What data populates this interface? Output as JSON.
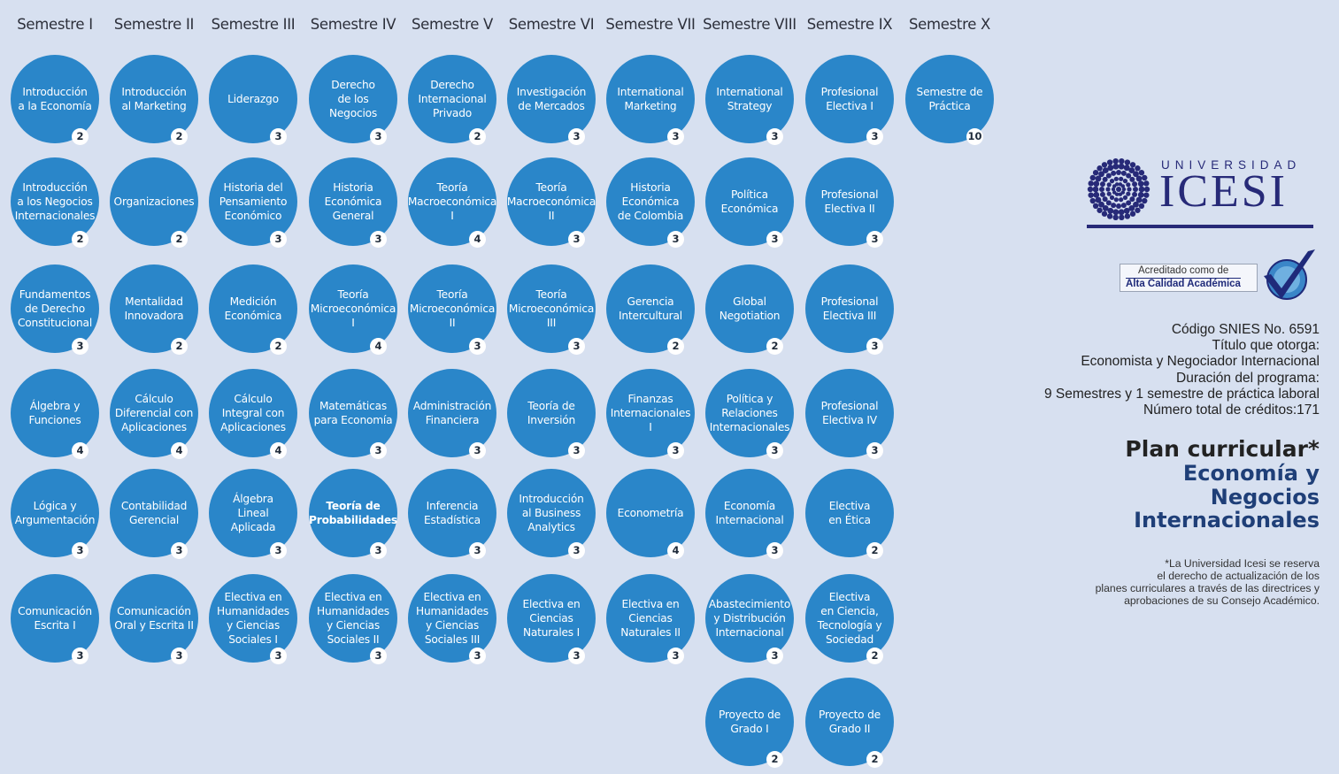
{
  "semesters": [
    {
      "header": "Semestre I",
      "courses": [
        {
          "name": "Introducción\na la Economía",
          "credits": "2"
        },
        {
          "name": "Introducción\na los Negocios\nInternacionales",
          "credits": "2"
        },
        {
          "name": "Fundamentos\nde Derecho\nConstitucional",
          "credits": "3"
        },
        {
          "name": "Álgebra y\nFunciones",
          "credits": "4"
        },
        {
          "name": "Lógica y\nArgumentación",
          "credits": "3"
        },
        {
          "name": "Comunicación\nEscrita I",
          "credits": "3"
        }
      ]
    },
    {
      "header": "Semestre II",
      "courses": [
        {
          "name": "Introducción\nal Marketing",
          "credits": "2"
        },
        {
          "name": "Organizaciones",
          "credits": "2"
        },
        {
          "name": "Mentalidad\nInnovadora",
          "credits": "2"
        },
        {
          "name": "Cálculo\nDiferencial con\nAplicaciones",
          "credits": "4"
        },
        {
          "name": "Contabilidad\nGerencial",
          "credits": "3"
        },
        {
          "name": "Comunicación\nOral y Escrita II",
          "credits": "3"
        }
      ]
    },
    {
      "header": "Semestre III",
      "courses": [
        {
          "name": "Liderazgo",
          "credits": "3"
        },
        {
          "name": "Historia del\nPensamiento\nEconómico",
          "credits": "3"
        },
        {
          "name": "Medición\nEconómica",
          "credits": "2"
        },
        {
          "name": "Cálculo\nIntegral con\nAplicaciones",
          "credits": "4"
        },
        {
          "name": "Álgebra\nLineal\nAplicada",
          "credits": "3"
        },
        {
          "name": "Electiva en\nHumanidades\ny Ciencias\nSociales I",
          "credits": "3"
        }
      ]
    },
    {
      "header": "Semestre IV",
      "courses": [
        {
          "name": "Derecho\nde los\nNegocios",
          "credits": "3"
        },
        {
          "name": "Historia\nEconómica\nGeneral",
          "credits": "3"
        },
        {
          "name": "Teoría\nMicroeconómica\nI",
          "credits": "4"
        },
        {
          "name": "Matemáticas\npara Economía",
          "credits": "3"
        },
        {
          "name": "Teoría de\nProbabilidades",
          "credits": "3",
          "bold": true
        },
        {
          "name": "Electiva en\nHumanidades\ny Ciencias\nSociales II",
          "credits": "3"
        }
      ]
    },
    {
      "header": "Semestre V",
      "courses": [
        {
          "name": "Derecho\nInternacional\nPrivado",
          "credits": "2"
        },
        {
          "name": "Teoría\nMacroeconómica\nI",
          "credits": "4"
        },
        {
          "name": "Teoría\nMicroeconómica\nII",
          "credits": "3"
        },
        {
          "name": "Administración\nFinanciera",
          "credits": "3"
        },
        {
          "name": "Inferencia\nEstadística",
          "credits": "3"
        },
        {
          "name": "Electiva en\nHumanidades\ny Ciencias\nSociales III",
          "credits": "3"
        }
      ]
    },
    {
      "header": "Semestre VI",
      "courses": [
        {
          "name": "Investigación\nde Mercados",
          "credits": "3"
        },
        {
          "name": "Teoría\nMacroeconómica\nII",
          "credits": "3"
        },
        {
          "name": "Teoría\nMicroeconómica\nIII",
          "credits": "3"
        },
        {
          "name": "Teoría de\nInversión",
          "credits": "3"
        },
        {
          "name": "Introducción\nal Business\nAnalytics",
          "credits": "3"
        },
        {
          "name": "Electiva en\nCiencias\nNaturales I",
          "credits": "3"
        }
      ]
    },
    {
      "header": "Semestre VII",
      "courses": [
        {
          "name": "International\nMarketing",
          "credits": "3"
        },
        {
          "name": "Historia\nEconómica\nde Colombia",
          "credits": "3"
        },
        {
          "name": "Gerencia\nIntercultural",
          "credits": "2"
        },
        {
          "name": "Finanzas\nInternacionales\nI",
          "credits": "3"
        },
        {
          "name": "Econometría",
          "credits": "4"
        },
        {
          "name": "Electiva en\nCiencias\nNaturales II",
          "credits": "3"
        }
      ]
    },
    {
      "header": "Semestre VIII",
      "courses": [
        {
          "name": "International\nStrategy",
          "credits": "3"
        },
        {
          "name": "Política\nEconómica",
          "credits": "3"
        },
        {
          "name": "Global\nNegotiation",
          "credits": "2"
        },
        {
          "name": "Política y\nRelaciones\nInternacionales",
          "credits": "3"
        },
        {
          "name": "Economía\nInternacional",
          "credits": "3"
        },
        {
          "name": "Abastecimiento\ny Distribución\nInternacional",
          "credits": "3"
        },
        {
          "name": "Proyecto de\nGrado I",
          "credits": "2"
        }
      ]
    },
    {
      "header": "Semestre IX",
      "courses": [
        {
          "name": "Profesional\nElectiva I",
          "credits": "3"
        },
        {
          "name": "Profesional\nElectiva II",
          "credits": "3"
        },
        {
          "name": "Profesional\nElectiva III",
          "credits": "3"
        },
        {
          "name": "Profesional\nElectiva IV",
          "credits": "3"
        },
        {
          "name": "Electiva\nen Ética",
          "credits": "2"
        },
        {
          "name": "Electiva\nen Ciencia,\nTecnología y\nSociedad",
          "credits": "2"
        },
        {
          "name": "Proyecto de\nGrado II",
          "credits": "2"
        }
      ]
    },
    {
      "header": "Semestre X",
      "courses": [
        {
          "name": "Semestre de\nPráctica",
          "credits": "10"
        }
      ]
    }
  ],
  "logo": {
    "line1": "UNIVERSIDAD",
    "line2": "ICESI"
  },
  "accreditation": {
    "line1": "Acreditado como de",
    "line2": "Alta Calidad Académica"
  },
  "info": {
    "snies": "Código SNIES No. 6591",
    "title_label": "Título que otorga:",
    "title_value": "Economista y Negociador Internacional",
    "duration_label": "Duración del programa:",
    "duration_value": "9 Semestres y 1 semestre de práctica laboral",
    "credits_total": "Número total de créditos:171"
  },
  "plan": {
    "line1": "Plan curricular*",
    "line2": "Economía y",
    "line3": "Negocios",
    "line4": "Internacionales"
  },
  "footnote": {
    "line1": "*La Universidad Icesi se reserva",
    "line2": "el derecho de actualización de los",
    "line3": "planes curriculares a través de las directrices y",
    "line4": "aprobaciones de su Consejo Académico."
  },
  "colors": {
    "background": "#d7e0f0",
    "circle": "#2a86c9",
    "brand": "#272a78"
  }
}
